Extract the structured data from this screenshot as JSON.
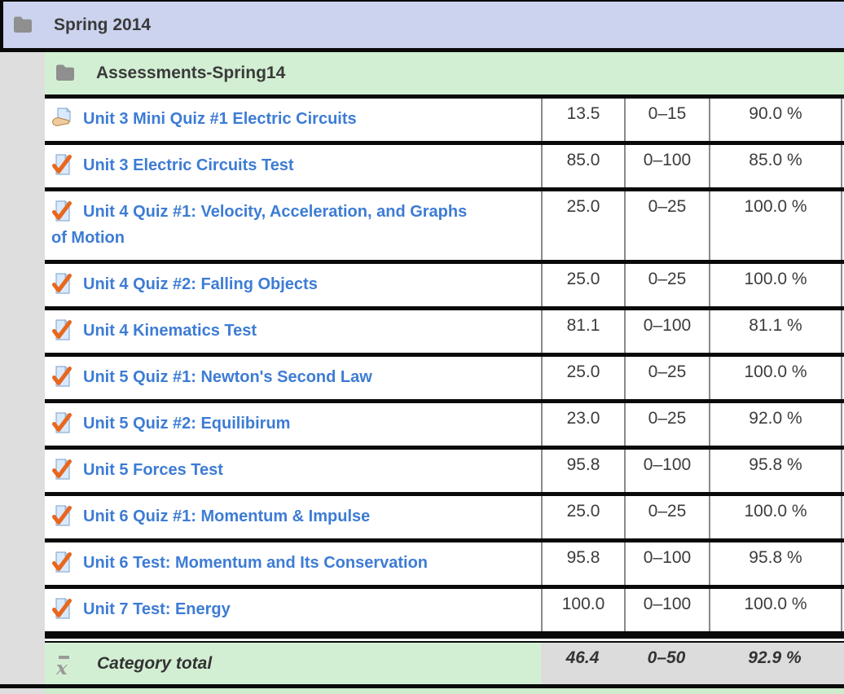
{
  "colors": {
    "course_header_bg": "#ccd3ee",
    "category_bg": "#d3efd3",
    "indent_bg": "#dedede",
    "total_cells_bg": "#dcdcdc",
    "link_blue": "#3d7cd4",
    "border_black": "#0a0a0a",
    "separator_gray": "#8a8a8a"
  },
  "course_header": {
    "title": "Spring 2014",
    "icon": "folder-icon"
  },
  "category_header": {
    "title": "Assessments-Spring14",
    "icon": "folder-icon"
  },
  "rows": [
    {
      "icon": "assignment-icon",
      "name": "Unit 3 Mini Quiz #1 Electric Circuits",
      "grade": "13.5",
      "range": "0–15",
      "percentage": "90.0 %"
    },
    {
      "icon": "quiz-icon",
      "name": "Unit 3 Electric Circuits Test",
      "grade": "85.0",
      "range": "0–100",
      "percentage": "85.0 %"
    },
    {
      "icon": "quiz-icon",
      "name": "Unit 4 Quiz #1: Velocity, Acceleration, and Graphs of Motion",
      "grade": "25.0",
      "range": "0–25",
      "percentage": "100.0 %"
    },
    {
      "icon": "quiz-icon",
      "name": "Unit 4 Quiz #2: Falling Objects",
      "grade": "25.0",
      "range": "0–25",
      "percentage": "100.0 %"
    },
    {
      "icon": "quiz-icon",
      "name": "Unit 4 Kinematics Test",
      "grade": "81.1",
      "range": "0–100",
      "percentage": "81.1 %"
    },
    {
      "icon": "quiz-icon",
      "name": "Unit 5 Quiz #1: Newton's Second Law",
      "grade": "25.0",
      "range": "0–25",
      "percentage": "100.0 %"
    },
    {
      "icon": "quiz-icon",
      "name": "Unit 5 Quiz #2: Equilibirum",
      "grade": "23.0",
      "range": "0–25",
      "percentage": "92.0 %"
    },
    {
      "icon": "quiz-icon",
      "name": "Unit 5 Forces Test",
      "grade": "95.8",
      "range": "0–100",
      "percentage": "95.8 %"
    },
    {
      "icon": "quiz-icon",
      "name": "Unit 6 Quiz #1: Momentum & Impulse",
      "grade": "25.0",
      "range": "0–25",
      "percentage": "100.0 %"
    },
    {
      "icon": "quiz-icon",
      "name": "Unit 6 Test: Momentum and Its Conservation",
      "grade": "95.8",
      "range": "0–100",
      "percentage": "95.8 %"
    },
    {
      "icon": "quiz-icon",
      "name": "Unit 7 Test: Energy",
      "grade": "100.0",
      "range": "0–100",
      "percentage": "100.0 %"
    }
  ],
  "total_row": {
    "icon": "mean-icon",
    "label": "Category total",
    "grade": "46.4",
    "range": "0–50",
    "percentage": "92.9 %"
  }
}
